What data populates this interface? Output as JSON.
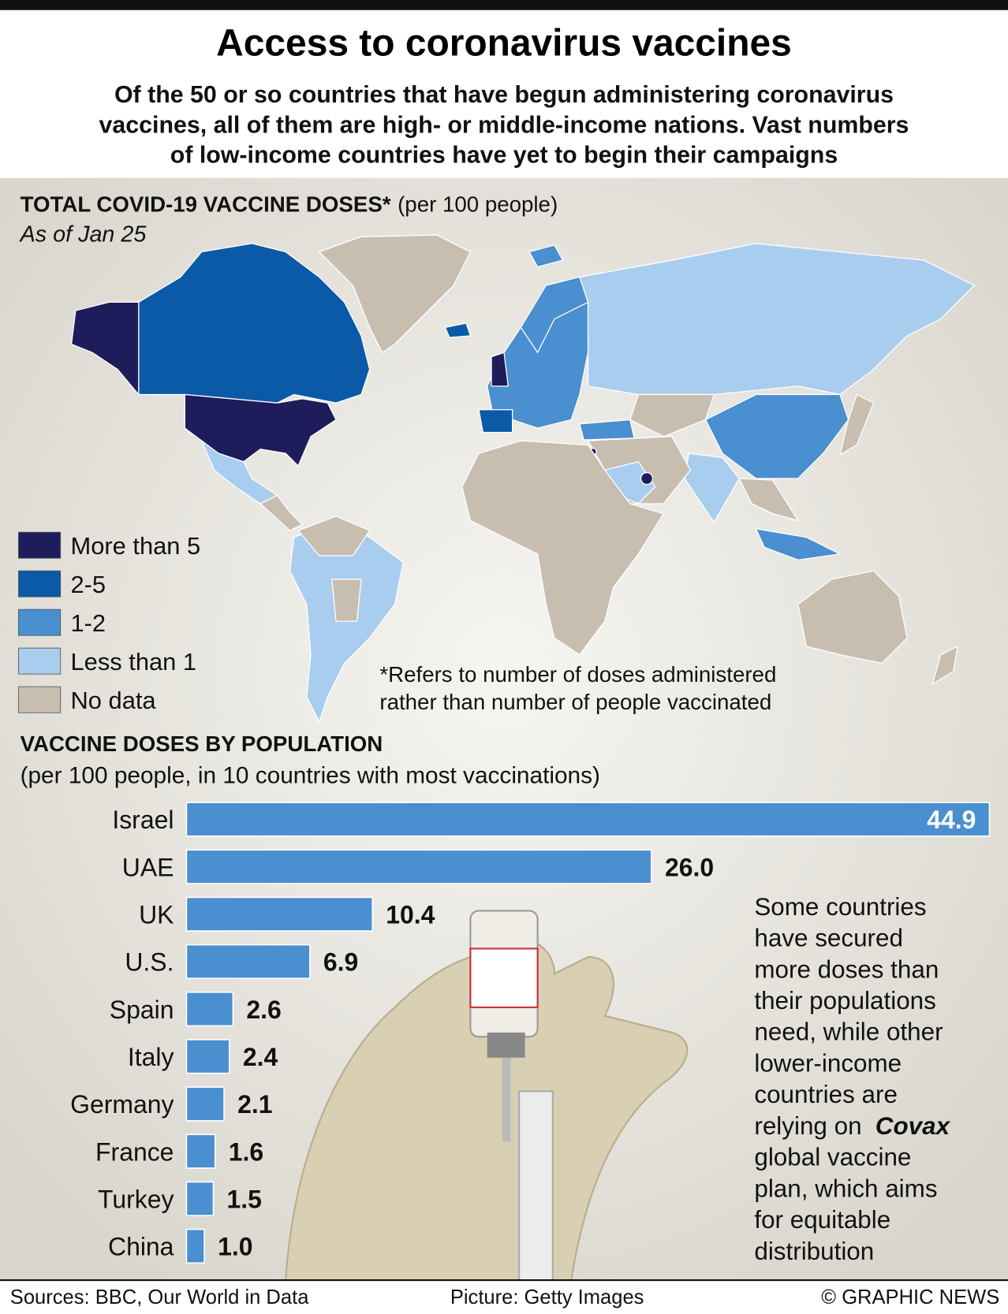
{
  "header": {
    "title": "Access to coronavirus vaccines",
    "subtitle": [
      "Of the 50 or so countries that have begun administering coronavirus",
      "vaccines, all of them are high- or middle-income nations. Vast numbers",
      "of low-income countries have yet to begin their campaigns"
    ]
  },
  "map": {
    "title": "TOTAL COVID-19 VACCINE DOSES*",
    "title_unit": "(per 100 people)",
    "date": "As of Jan 25",
    "legend": [
      {
        "label": "More than 5",
        "color": "#1f1c5c"
      },
      {
        "label": "2-5",
        "color": "#0b5aa8"
      },
      {
        "label": "1-2",
        "color": "#4a8fd0"
      },
      {
        "label": "Less than 1",
        "color": "#a9cdee"
      },
      {
        "label": "No data",
        "color": "#c8beb0"
      }
    ],
    "footnote": [
      "*Refers to number of doses administered",
      "rather than number of people vaccinated"
    ]
  },
  "chart_data": {
    "type": "bar",
    "title": "VACCINE DOSES BY POPULATION",
    "subtitle": "(per 100 people, in 10 countries with most vaccinations)",
    "categories": [
      "Israel",
      "UAE",
      "UK",
      "U.S.",
      "Spain",
      "Italy",
      "Germany",
      "France",
      "Turkey",
      "China"
    ],
    "values": [
      44.9,
      26,
      10.4,
      6.9,
      2.6,
      2.4,
      2.1,
      1.6,
      1.5,
      1
    ],
    "value_labels": [
      "44.9",
      "26.0",
      "10.4",
      "6.9",
      "2.6",
      "2.4",
      "2.1",
      "1.6",
      "1.5",
      "1.0"
    ],
    "color": "#4a8fd0",
    "xlim": [
      0,
      45
    ]
  },
  "sidebar": {
    "lines": [
      "Some countries",
      "have secured",
      "more doses than",
      "their populations",
      "need, while other",
      "lower-income",
      "countries are",
      {
        "text": "relying on ",
        "emphasis": "Covax"
      },
      "global vaccine",
      "plan, which aims",
      "for equitable",
      "distribution"
    ]
  },
  "footer": {
    "sources": "Sources: BBC, Our World in Data",
    "picture": "Picture: Getty Images",
    "credit": "© GRAPHIC NEWS"
  }
}
